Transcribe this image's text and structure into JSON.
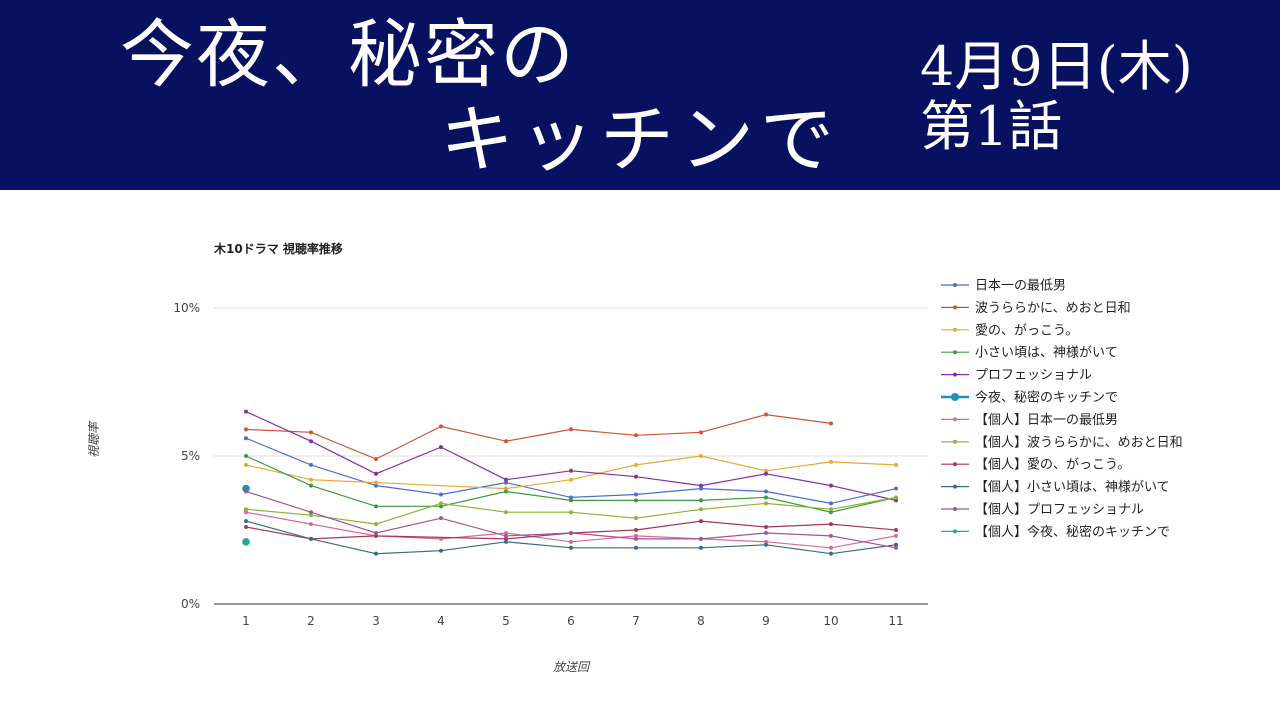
{
  "header": {
    "title_line1": "今夜、秘密の",
    "title_line2": "キッチンで",
    "date": "4月9日(木)",
    "episode": "第1話"
  },
  "chart_data": {
    "type": "line",
    "title": "木10ドラマ 視聴率推移",
    "xlabel": "放送回",
    "ylabel": "視聴率",
    "ylim": [
      0,
      10
    ],
    "yticks": [
      "0%",
      "5%",
      "10%"
    ],
    "x": [
      1,
      2,
      3,
      4,
      5,
      6,
      7,
      8,
      9,
      10,
      11
    ],
    "series": [
      {
        "name": "日本一の最低男",
        "color": "#4a6fcf",
        "values": [
          5.6,
          4.7,
          4.0,
          3.7,
          4.1,
          3.6,
          3.7,
          3.9,
          3.8,
          3.4,
          3.9
        ]
      },
      {
        "name": "波うららかに、めおと日和",
        "color": "#cc5533",
        "values": [
          5.9,
          5.8,
          4.9,
          6.0,
          5.5,
          5.9,
          5.7,
          5.8,
          6.4,
          6.1,
          null
        ]
      },
      {
        "name": "愛の、がっこう。",
        "color": "#e8a838",
        "values": [
          4.7,
          4.2,
          4.1,
          null,
          3.9,
          4.2,
          4.7,
          5.0,
          4.5,
          4.8,
          4.7
        ]
      },
      {
        "name": "小さい頃は、神様がいて",
        "color": "#3d9a3d",
        "values": [
          5.0,
          4.0,
          3.3,
          3.3,
          3.8,
          3.5,
          3.5,
          3.5,
          3.6,
          3.1,
          3.6
        ]
      },
      {
        "name": "プロフェッショナル",
        "color": "#8a2f9a",
        "values": [
          6.5,
          5.5,
          4.4,
          5.3,
          4.2,
          4.5,
          4.3,
          4.0,
          4.4,
          4.0,
          3.5
        ]
      },
      {
        "name": "今夜、秘密のキッチンで",
        "color": "#1e8fb8",
        "values": [
          3.9,
          null,
          null,
          null,
          null,
          null,
          null,
          null,
          null,
          null,
          null
        ]
      },
      {
        "name": "【個人】日本一の最低男",
        "color": "#d86a9a",
        "values": [
          3.1,
          2.7,
          2.3,
          2.2,
          2.4,
          2.1,
          2.3,
          2.2,
          2.1,
          1.9,
          2.3
        ]
      },
      {
        "name": "【個人】波うららかに、めおと日和",
        "color": "#8cb33a",
        "values": [
          3.2,
          3.0,
          2.7,
          3.4,
          3.1,
          3.1,
          2.9,
          3.2,
          3.4,
          3.2,
          3.6
        ]
      },
      {
        "name": "【個人】愛の、がっこう。",
        "color": "#a33a55",
        "values": [
          2.6,
          2.2,
          2.3,
          null,
          2.2,
          2.4,
          2.5,
          2.8,
          2.6,
          2.7,
          2.5
        ]
      },
      {
        "name": "【個人】小さい頃は、神様がいて",
        "color": "#3a6a8a",
        "values": [
          2.8,
          2.2,
          1.7,
          1.8,
          2.1,
          1.9,
          1.9,
          1.9,
          2.0,
          1.7,
          2.0
        ]
      },
      {
        "name": "【個人】プロフェッショナル",
        "color": "#a0559a",
        "values": [
          3.8,
          3.1,
          2.4,
          2.9,
          2.3,
          2.4,
          2.2,
          2.2,
          2.4,
          2.3,
          1.9
        ]
      },
      {
        "name": "【個人】今夜、秘密のキッチンで",
        "color": "#2aa59a",
        "values": [
          2.1,
          null,
          null,
          null,
          null,
          null,
          null,
          null,
          null,
          null,
          null
        ]
      }
    ]
  }
}
